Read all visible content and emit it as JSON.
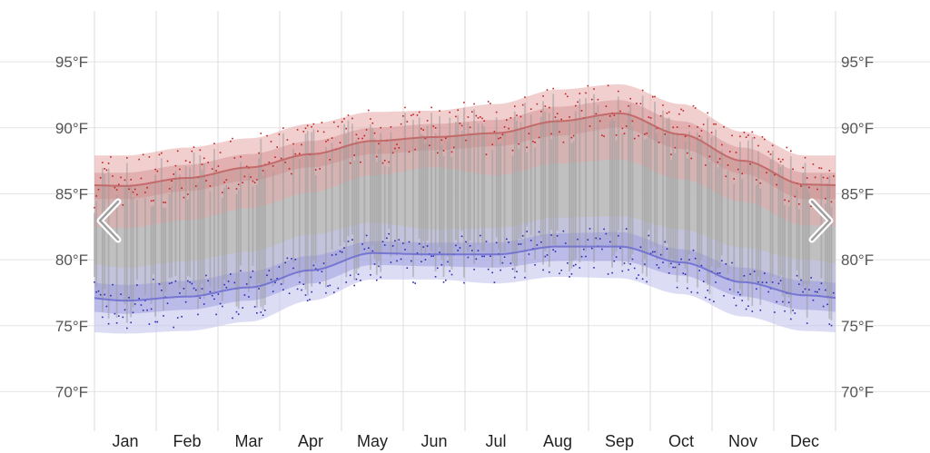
{
  "chart_data": {
    "type": "area",
    "title": "",
    "xlabel": "",
    "ylabel": "",
    "y_unit": "°F",
    "ylim": [
      67,
      99
    ],
    "y_ticks": [
      "70°F",
      "75°F",
      "80°F",
      "85°F",
      "90°F",
      "95°F"
    ],
    "y_tick_values": [
      70,
      75,
      80,
      85,
      90,
      95
    ],
    "categories": [
      "Jan",
      "Feb",
      "Mar",
      "Apr",
      "May",
      "Jun",
      "Jul",
      "Aug",
      "Sep",
      "Oct",
      "Nov",
      "Dec"
    ],
    "grid": true,
    "legend": "none",
    "series": [
      {
        "role": "average-high",
        "color": "#c06060",
        "values": [
          85.6,
          86.2,
          87.0,
          88.0,
          89.0,
          89.3,
          89.6,
          90.5,
          91.1,
          89.5,
          87.5,
          85.7
        ]
      },
      {
        "role": "average-low",
        "color": "#6b6bd0",
        "values": [
          76.9,
          77.2,
          77.9,
          79.2,
          80.5,
          80.4,
          80.4,
          81.0,
          81.0,
          79.8,
          78.3,
          77.3
        ]
      }
    ],
    "bands": {
      "high_outer": {
        "color": "#e6a8a8",
        "upper": [
          87.9,
          88.5,
          89.2,
          90.3,
          91.2,
          91.3,
          91.8,
          92.9,
          93.3,
          91.8,
          89.7,
          87.9
        ],
        "lower": [
          82.4,
          83.0,
          83.9,
          85.1,
          86.4,
          87.0,
          86.4,
          87.3,
          87.6,
          86.1,
          84.4,
          82.6
        ]
      },
      "high_inner": {
        "color": "#d08a8a",
        "upper": [
          86.6,
          87.2,
          88.0,
          89.0,
          90.0,
          90.3,
          90.6,
          91.6,
          92.1,
          90.5,
          88.5,
          86.6
        ],
        "lower": [
          84.6,
          85.2,
          86.0,
          87.0,
          88.0,
          88.3,
          88.6,
          89.4,
          90.0,
          88.4,
          86.5,
          84.6
        ]
      },
      "low_outer": {
        "color": "#c4c4ee",
        "upper": [
          79.4,
          79.9,
          80.6,
          81.9,
          82.8,
          82.3,
          82.4,
          83.2,
          83.3,
          82.3,
          80.9,
          80.0
        ],
        "lower": [
          74.4,
          74.6,
          75.3,
          76.9,
          78.5,
          78.5,
          78.2,
          78.7,
          78.6,
          77.4,
          75.7,
          74.6
        ]
      },
      "low_inner": {
        "color": "#9a9ade",
        "upper": [
          78.1,
          78.4,
          79.1,
          80.3,
          81.4,
          81.3,
          81.3,
          82.0,
          82.1,
          80.8,
          79.4,
          78.4
        ],
        "lower": [
          75.9,
          76.2,
          76.9,
          78.2,
          79.6,
          79.5,
          79.4,
          79.9,
          79.9,
          78.8,
          77.2,
          76.2
        ]
      }
    }
  },
  "navigation": {
    "prev_icon": "chevron-left-icon",
    "next_icon": "chevron-right-icon"
  }
}
